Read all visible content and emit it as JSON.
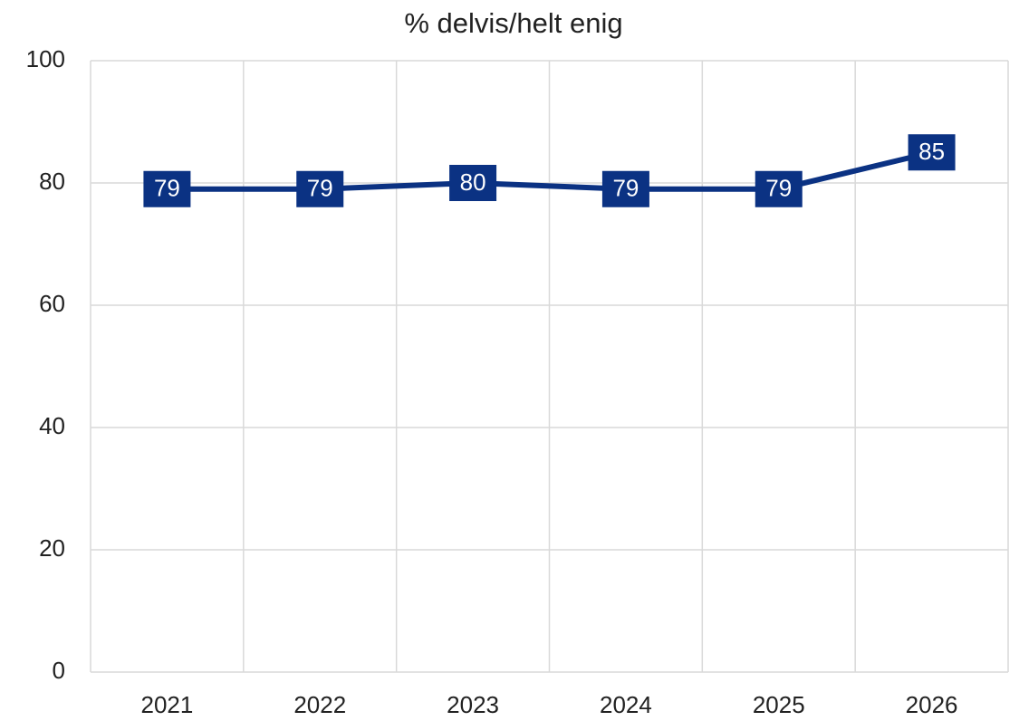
{
  "chart_data": {
    "type": "line",
    "title": "% delvis/helt enig",
    "categories": [
      "2021",
      "2022",
      "2023",
      "2024",
      "2025",
      "2026"
    ],
    "values": [
      79,
      79,
      80,
      79,
      79,
      85
    ],
    "color": "#0b3283",
    "ylim": [
      0,
      100
    ],
    "yticks": [
      0,
      20,
      40,
      60,
      80,
      100
    ],
    "grid": true
  }
}
